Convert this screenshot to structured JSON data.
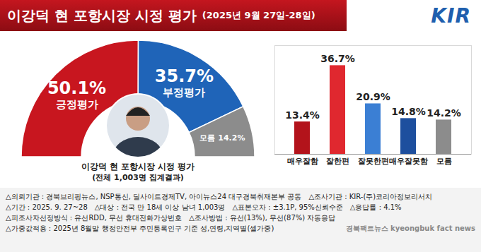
{
  "header": {
    "title": "이강덕 현 포항시장 시정 평가",
    "subtitle": "(2025년 9월 27일-28일)",
    "logo": "KIR"
  },
  "chart_data": [
    {
      "type": "pie",
      "title": "이강덕 현 포항시장 시정 평가",
      "subtitle": "(전체 1,003명 집계결과)",
      "categories": [
        "긍정평가",
        "부정평가",
        "모름"
      ],
      "values": [
        50.1,
        35.7,
        14.2
      ],
      "value_labels": [
        "50.1%",
        "35.7%",
        "14.2%"
      ],
      "colors": [
        "#c8161f",
        "#1f64b8",
        "#8c8c8c"
      ],
      "data_labels": true
    },
    {
      "type": "bar",
      "categories": [
        "매우잘함",
        "잘한편",
        "잘못한편",
        "매우잘못함",
        "모름"
      ],
      "values": [
        13.4,
        36.7,
        20.9,
        14.8,
        14.2
      ],
      "value_labels": [
        "13.4%",
        "36.7%",
        "20.9%",
        "14.8%",
        "14.2%"
      ],
      "colors": [
        "#b3131b",
        "#e0282f",
        "#3b7fd4",
        "#1d4f9e",
        "#8c8c8c"
      ],
      "ylim": [
        0,
        45
      ],
      "yticks": [],
      "tick_labels": "x",
      "data_labels": true
    }
  ],
  "notes": [
    "△의뢰기관 : 경북브리핑뉴스, NSP통신, 딜사이트경제TV, 아이뉴스24 대구경북취재본부 공동",
    "△조사기관 : KIR-(주)코리아정보리서치",
    "△기간 : 2025. 9. 27~28",
    "△대상 : 전국 만 18세 이상 남녀 1,003명",
    "△표본오차 : ±3.1P, 95%신뢰수준",
    "△응답률 : 4.1%",
    "△피조사자선정방식 : 유선RDD, 무선 휴대전화가상번호",
    "△조사방법 : 유선(13%), 무선(87%) 자동응답",
    "△가중값적용 : 2025년 8월말 행정안전부 주민등록인구 기준 성,연령,지역별(셀가중)"
  ],
  "watermark": [
    "경북팩트뉴스",
    "kyeongbuk fact news"
  ]
}
